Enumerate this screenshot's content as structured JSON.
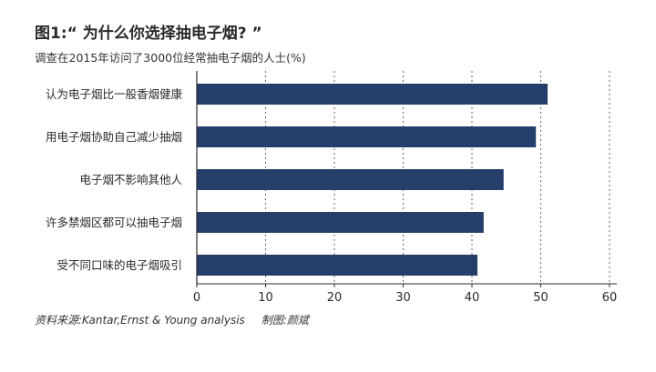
{
  "title": "图1:“ 为什么你选择抽电子烟? ”",
  "subtitle": "调查在2015年访问了3000位经常抽电子烟的人士(%)",
  "source": "资料来源:Kantar,Ernst & Young analysis",
  "credit": "制图:颜斌",
  "colors": {
    "bar": "#263f6a",
    "grid": "#666666",
    "axis": "#2b2b2b"
  },
  "chart_data": {
    "type": "bar",
    "orientation": "horizontal",
    "categories": [
      "认为电子烟比一般香烟健康",
      "用电子烟协助自己减少抽烟",
      "电子烟不影响其他人",
      "许多禁烟区都可以抽电子烟",
      "受不同口味的电子烟吸引"
    ],
    "values": [
      51,
      49.3,
      44.6,
      41.7,
      40.8
    ],
    "xticks": [
      0,
      10,
      20,
      30,
      40,
      50,
      60
    ],
    "xlim": [
      0,
      60
    ],
    "grid": "vertical-dotted"
  }
}
